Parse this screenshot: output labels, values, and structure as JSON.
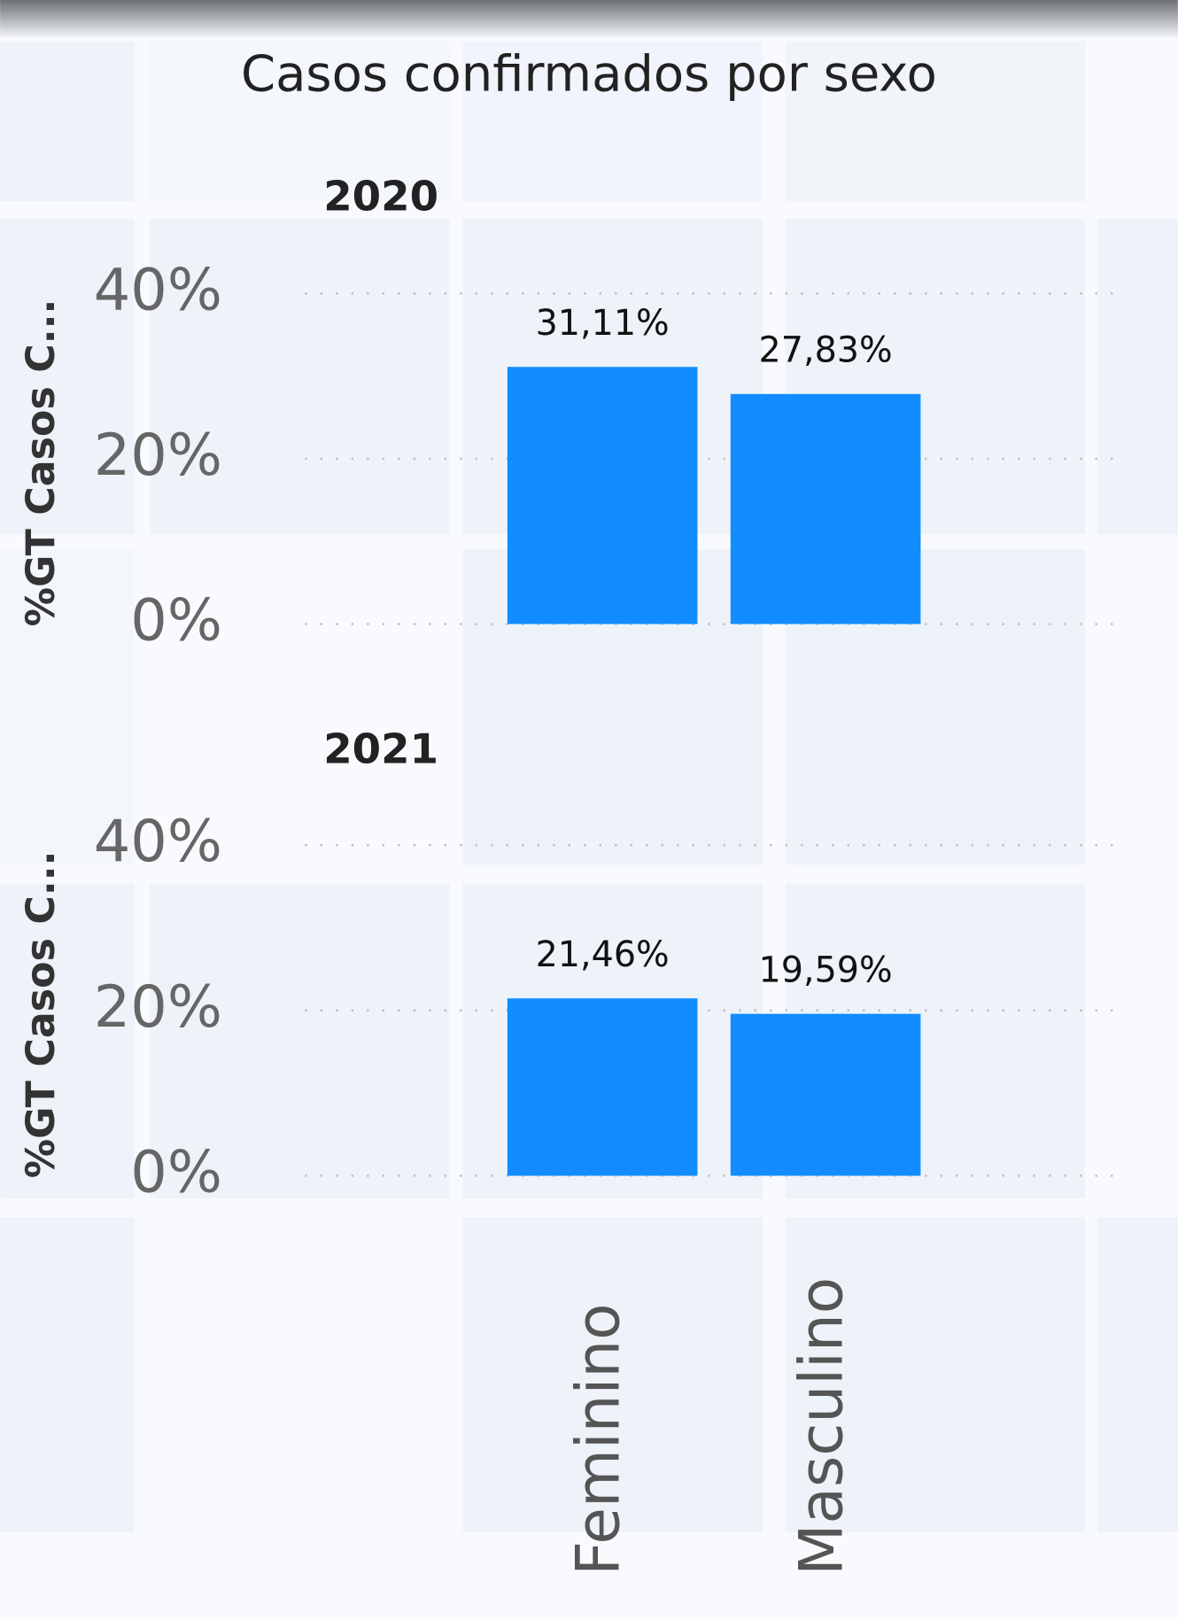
{
  "chart_data": {
    "type": "bar",
    "title": "Casos confirmados por sexo",
    "categories": [
      "Feminino",
      "Masculino"
    ],
    "color": "#118dff",
    "grid": true,
    "panels": [
      {
        "title": "2020",
        "y_label": "%GT Casos C...",
        "values": [
          31.11,
          27.83
        ],
        "value_labels": [
          "31,11%",
          "27,83%"
        ],
        "ylim": [
          0,
          40
        ],
        "yticks": [
          {
            "value": 0,
            "label": "0%"
          },
          {
            "value": 20,
            "label": "20%"
          },
          {
            "value": 40,
            "label": "40%"
          }
        ]
      },
      {
        "title": "2021",
        "y_label": "%GT Casos C...",
        "values": [
          21.46,
          19.59
        ],
        "value_labels": [
          "21,46%",
          "19,59%"
        ],
        "ylim": [
          0,
          40
        ],
        "yticks": [
          {
            "value": 0,
            "label": "0%"
          },
          {
            "value": 20,
            "label": "20%"
          },
          {
            "value": 40,
            "label": "40%"
          }
        ]
      }
    ]
  }
}
